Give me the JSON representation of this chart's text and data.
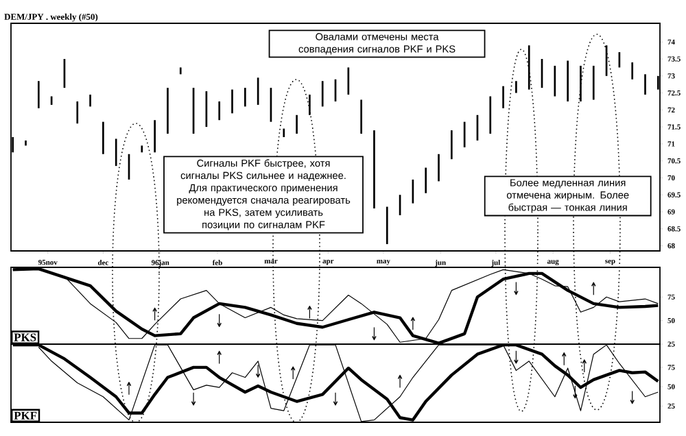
{
  "chart_data": [
    {
      "type": "bar",
      "title": "DEM/JPY . weekly  (#50)",
      "x": [
        "1995-10-13",
        "1995-10-20",
        "1995-10-27",
        "1995-11-03",
        "1995-11-10",
        "1995-11-17",
        "1995-11-24",
        "1995-12-01",
        "1995-12-08",
        "1995-12-15",
        "1995-12-22",
        "1995-12-29",
        "1996-01-05",
        "1996-01-12",
        "1996-01-19",
        "1996-01-26",
        "1996-02-02",
        "1996-02-09",
        "1996-02-16",
        "1996-02-23",
        "1996-03-01",
        "1996-03-08",
        "1996-03-15",
        "1996-03-22",
        "1996-03-29",
        "1996-04-05",
        "1996-04-12",
        "1996-04-19",
        "1996-04-26",
        "1996-05-03",
        "1996-05-10",
        "1996-05-17",
        "1996-05-24",
        "1996-05-31",
        "1996-06-07",
        "1996-06-14",
        "1996-06-21",
        "1996-06-28",
        "1996-07-05",
        "1996-07-12",
        "1996-07-19",
        "1996-07-26",
        "1996-08-02",
        "1996-08-09",
        "1996-08-16",
        "1996-08-23",
        "1996-08-30",
        "1996-09-06",
        "1996-09-13",
        "1996-09-20",
        "1996-09-27"
      ],
      "base": [
        70.75,
        70.95,
        72.05,
        72.15,
        72.65,
        71.6,
        72.1,
        70.7,
        70.35,
        69.95,
        70.75,
        70.75,
        71.3,
        73.05,
        71.3,
        71.5,
        71.7,
        71.9,
        72.1,
        72.15,
        71.65,
        71.2,
        71.3,
        71.85,
        72.1,
        72.25,
        72.45,
        71.3,
        69.1,
        68.05,
        68.9,
        69.25,
        69.55,
        69.9,
        70.55,
        70.9,
        71.1,
        71.3,
        72.05,
        72.5,
        72.6,
        72.65,
        72.4,
        72.25,
        72.25,
        72.3,
        73.0,
        73.25,
        72.9,
        72.45,
        72.6
      ],
      "values": [
        0.45,
        0.15,
        0.8,
        0.25,
        0.85,
        0.65,
        0.35,
        0.95,
        0.8,
        0.75,
        0.2,
        0.95,
        1.35,
        0.2,
        1.35,
        1.05,
        0.55,
        0.7,
        0.55,
        0.8,
        1.0,
        0.25,
        0.55,
        0.6,
        0.75,
        0.65,
        0.8,
        1.0,
        2.3,
        1.1,
        0.6,
        0.7,
        0.75,
        0.8,
        0.85,
        0.75,
        0.75,
        1.1,
        0.65,
        0.35,
        1.3,
        0.85,
        0.9,
        1.2,
        1.05,
        1.0,
        0.9,
        0.45,
        0.5,
        0.6,
        0.4
      ],
      "color": "#000000",
      "xlim": [
        "1995-10-12",
        "1996-09-28"
      ],
      "xticks": [
        {
          "value": "1995-11-01",
          "label": "95nov"
        },
        {
          "value": "1995-12-01",
          "label": "dec"
        },
        {
          "value": "1996-01-01",
          "label": "96jan"
        },
        {
          "value": "1996-02-01",
          "label": "feb"
        },
        {
          "value": "1996-03-01",
          "label": "mar"
        },
        {
          "value": "1996-04-01",
          "label": "apr"
        },
        {
          "value": "1996-05-01",
          "label": "may"
        },
        {
          "value": "1996-06-01",
          "label": "jun"
        },
        {
          "value": "1996-07-01",
          "label": "jul"
        },
        {
          "value": "1996-08-01",
          "label": "aug"
        },
        {
          "value": "1996-09-01",
          "label": "sep"
        }
      ],
      "ylim": [
        67.85,
        74.55
      ],
      "yticks": [
        68,
        68.5,
        69,
        69.5,
        70,
        70.5,
        71,
        71.5,
        72,
        72.5,
        73,
        73.5,
        74
      ],
      "annotations": [
        "Овалами отмечены места совпадения сигналов PKF и PKS",
        "Сигналы  PKF быстрее, хотя сигналы PKS  сильнее и надежнее. Для практического применения рекомендуется сначала реагировать на PKS, затем усиливать позиции по сигналам  PKF",
        "Более медленная линия отмечена жирным. Более быстрая — тонкая линия"
      ]
    },
    {
      "type": "line",
      "title": "PKS",
      "xlim": [
        "1995-10-12",
        "1996-09-28"
      ],
      "ylim": [
        25,
        106.5
      ],
      "yticks": [
        25,
        50,
        75
      ],
      "tick_labels": "y",
      "series": [
        {
          "color": "#000000",
          "x": [
            "1995-10-13",
            "1995-10-27",
            "1995-11-24",
            "1995-12-08",
            "1995-12-22",
            "1995-12-29",
            "1996-01-12",
            "1996-01-19",
            "1996-02-02",
            "1996-02-16",
            "1996-03-01",
            "1996-03-15",
            "1996-03-29",
            "1996-04-12",
            "1996-04-26",
            "1996-05-10",
            "1996-05-17",
            "1996-05-31",
            "1996-06-14",
            "1996-06-21",
            "1996-07-05",
            "1996-07-19",
            "1996-07-26",
            "1996-08-09",
            "1996-08-23",
            "1996-09-06",
            "1996-09-20",
            "1996-09-27"
          ],
          "values": [
            104,
            105,
            87,
            60,
            41,
            34,
            36,
            53,
            68,
            64,
            56,
            47,
            43,
            51,
            59,
            53,
            34,
            26,
            36,
            75,
            94,
            100,
            100,
            82,
            68,
            64,
            65,
            66
          ]
        },
        {
          "color": "#000000",
          "x": [
            "1995-10-13",
            "1995-10-27",
            "1995-11-10",
            "1995-11-24",
            "1995-12-08",
            "1995-12-15",
            "1995-12-22",
            "1995-12-29",
            "1996-01-12",
            "1996-01-26",
            "1996-02-02",
            "1996-02-16",
            "1996-03-01",
            "1996-03-08",
            "1996-03-15",
            "1996-03-29",
            "1996-04-12",
            "1996-04-19",
            "1996-05-03",
            "1996-05-10",
            "1996-05-24",
            "1996-05-31",
            "1996-06-07",
            "1996-06-28",
            "1996-07-05",
            "1996-07-19",
            "1996-07-26",
            "1996-08-02",
            "1996-08-09",
            "1996-08-16",
            "1996-08-23",
            "1996-08-30",
            "1996-09-06",
            "1996-09-20",
            "1996-09-27"
          ],
          "values": [
            104,
            104,
            97,
            68,
            48,
            31,
            31,
            46,
            73,
            82,
            68,
            53,
            64,
            56,
            52,
            50,
            77,
            68,
            46,
            27,
            31,
            51,
            82,
            99,
            104,
            100,
            94,
            87,
            86,
            59,
            64,
            75,
            70,
            73,
            68
          ]
        }
      ],
      "annotations": [
        "↑",
        "↓",
        "↑",
        "↓",
        "↑",
        "↓",
        "↑"
      ]
    },
    {
      "type": "line",
      "title": "PKF",
      "xlim": [
        "1995-10-12",
        "1996-09-28"
      ],
      "ylim": [
        4,
        105
      ],
      "yticks": [
        25,
        50,
        75
      ],
      "tick_labels": "y",
      "series": [
        {
          "color": "#000000",
          "x": [
            "1995-10-13",
            "1995-10-27",
            "1995-11-10",
            "1995-11-24",
            "1995-12-08",
            "1995-12-15",
            "1995-12-22",
            "1995-12-29",
            "1996-01-05",
            "1996-01-19",
            "1996-01-26",
            "1996-02-02",
            "1996-02-16",
            "1996-02-23",
            "1996-03-01",
            "1996-03-15",
            "1996-03-29",
            "1996-04-12",
            "1996-04-19",
            "1996-05-03",
            "1996-05-10",
            "1996-05-17",
            "1996-05-24",
            "1996-06-07",
            "1996-06-21",
            "1996-07-05",
            "1996-07-12",
            "1996-07-26",
            "1996-08-02",
            "1996-08-09",
            "1996-08-16",
            "1996-08-23",
            "1996-09-06",
            "1996-09-13",
            "1996-09-20",
            "1996-09-27"
          ],
          "values": [
            104,
            104,
            86,
            62,
            37,
            16,
            16,
            40,
            62,
            75,
            75,
            62,
            43,
            51,
            43,
            31,
            40,
            74,
            59,
            34,
            10,
            7,
            31,
            65,
            92,
            104,
            104,
            92,
            77,
            65,
            49,
            59,
            71,
            68,
            69,
            57
          ]
        },
        {
          "color": "#000000",
          "x": [
            "1995-10-27",
            "1995-11-03",
            "1995-11-17",
            "1995-12-01",
            "1995-12-15",
            "1995-12-29",
            "1996-01-05",
            "1996-01-19",
            "1996-01-26",
            "1996-02-02",
            "1996-02-09",
            "1996-02-16",
            "1996-02-23",
            "1996-03-01",
            "1996-03-08",
            "1996-03-22",
            "1996-04-05",
            "1996-04-19",
            "1996-04-26",
            "1996-05-10",
            "1996-05-17",
            "1996-05-31",
            "1996-06-07",
            "1996-07-05",
            "1996-07-12",
            "1996-07-19",
            "1996-08-02",
            "1996-08-09",
            "1996-08-16",
            "1996-08-23",
            "1996-08-30",
            "1996-09-06",
            "1996-09-20",
            "1996-09-27"
          ],
          "values": [
            101,
            83,
            55,
            37,
            7,
            104,
            104,
            46,
            52,
            49,
            68,
            62,
            83,
            22,
            19,
            104,
            104,
            5,
            7,
            37,
            62,
            104,
            104,
            104,
            71,
            83,
            37,
            74,
            19,
            92,
            104,
            80,
            37,
            43
          ]
        }
      ],
      "annotations": [
        "↑",
        "↓",
        "↑",
        "↓",
        "↑",
        "↓",
        "↑",
        "↓",
        "↑",
        "↓",
        "↑",
        "↓"
      ]
    }
  ]
}
